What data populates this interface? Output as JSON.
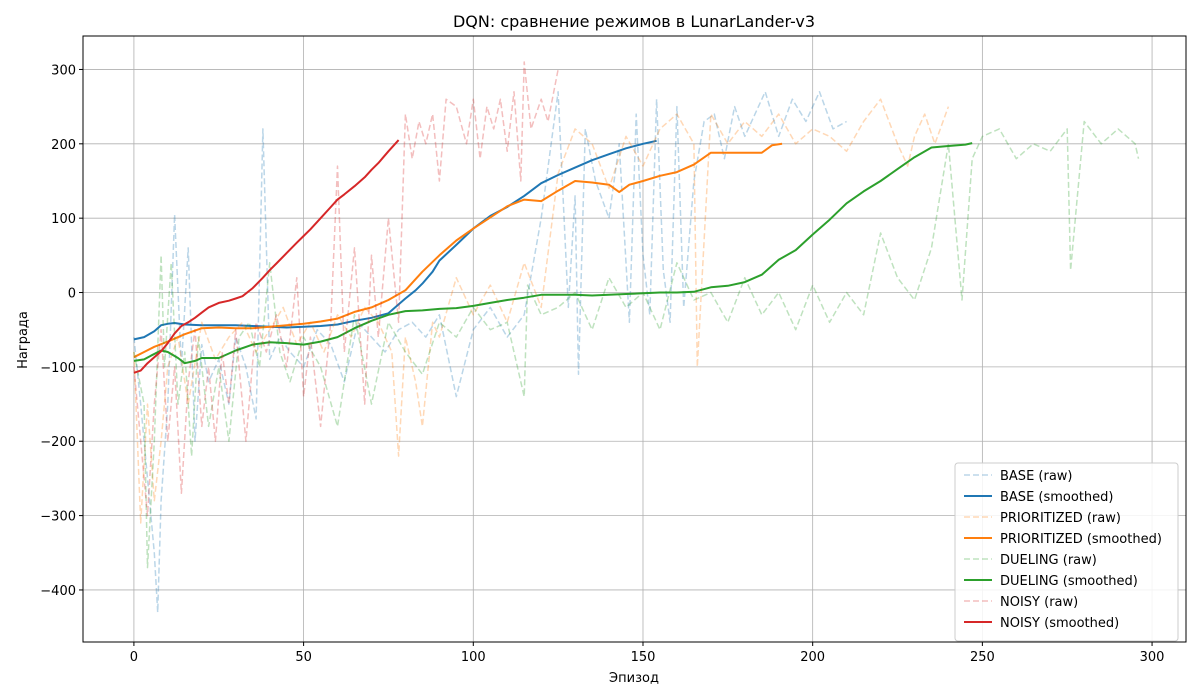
{
  "chart_data": {
    "type": "line",
    "title": "DQN: сравнение режимов в LunarLander-v3",
    "xlabel": "Эпизод",
    "ylabel": "Награда",
    "xlim": [
      -15,
      310
    ],
    "ylim": [
      -470,
      345
    ],
    "xticks": [
      0,
      50,
      100,
      150,
      200,
      250,
      300
    ],
    "yticks": [
      -400,
      -300,
      -200,
      -100,
      0,
      100,
      200,
      300
    ],
    "ytick_labels": [
      "−400",
      "−300",
      "−200",
      "−100",
      "0",
      "100",
      "200",
      "300"
    ],
    "grid": true,
    "legend_position": "lower-right",
    "series": [
      {
        "name": "BASE (raw)",
        "style": "dashed",
        "color": "#1f77b4",
        "opacity": 0.3,
        "x": [
          0,
          2,
          4,
          6,
          7,
          8,
          10,
          12,
          14,
          16,
          18,
          20,
          22,
          25,
          28,
          30,
          33,
          36,
          38,
          40,
          43,
          46,
          50,
          54,
          58,
          62,
          66,
          70,
          74,
          78,
          82,
          86,
          90,
          95,
          100,
          105,
          110,
          115,
          120,
          125,
          128,
          130,
          131,
          133,
          136,
          140,
          143,
          146,
          148,
          150,
          152,
          154,
          156,
          158,
          160,
          162,
          165,
          168,
          171,
          174,
          177,
          180,
          183,
          186,
          190,
          194,
          198,
          202,
          206,
          210
        ],
        "y": [
          -60,
          -150,
          -250,
          -350,
          -430,
          -280,
          -150,
          105,
          -100,
          60,
          -200,
          -70,
          -120,
          -90,
          -150,
          -60,
          -100,
          -170,
          220,
          -90,
          -60,
          -80,
          -100,
          -50,
          -70,
          -120,
          -40,
          -60,
          -80,
          -50,
          -40,
          -60,
          -30,
          -140,
          -50,
          -20,
          -60,
          -30,
          100,
          270,
          -20,
          130,
          -110,
          220,
          150,
          100,
          200,
          -40,
          240,
          50,
          -30,
          260,
          30,
          -40,
          250,
          -20,
          150,
          230,
          240,
          180,
          250,
          210,
          240,
          270,
          210,
          260,
          230,
          270,
          220,
          230
        ]
      },
      {
        "name": "BASE (smoothed)",
        "style": "solid",
        "color": "#1f77b4",
        "opacity": 1,
        "x": [
          0,
          3,
          6,
          8,
          10,
          12,
          15,
          20,
          25,
          30,
          35,
          40,
          45,
          50,
          55,
          60,
          65,
          70,
          75,
          78,
          80,
          83,
          85,
          88,
          90,
          95,
          100,
          105,
          110,
          115,
          120,
          125,
          130,
          135,
          140,
          145,
          150,
          154
        ],
        "y": [
          -63,
          -60,
          -52,
          -44,
          -42,
          -41,
          -43,
          -44,
          -44,
          -44,
          -45,
          -46,
          -47,
          -46,
          -45,
          -43,
          -38,
          -34,
          -28,
          -16,
          -8,
          3,
          12,
          28,
          43,
          64,
          86,
          103,
          115,
          130,
          147,
          158,
          168,
          178,
          186,
          194,
          200,
          204
        ]
      },
      {
        "name": "PRIORITIZED (raw)",
        "style": "dashed",
        "color": "#ff7f0e",
        "opacity": 0.3,
        "x": [
          0,
          2,
          4,
          6,
          8,
          10,
          13,
          16,
          20,
          24,
          28,
          32,
          36,
          40,
          44,
          48,
          52,
          56,
          60,
          64,
          68,
          72,
          76,
          78,
          80,
          83,
          85,
          88,
          90,
          95,
          100,
          105,
          110,
          115,
          120,
          125,
          130,
          135,
          140,
          145,
          150,
          155,
          160,
          165,
          166,
          170,
          175,
          180,
          185,
          190,
          195,
          200,
          205,
          210,
          215,
          220,
          225,
          228,
          230,
          233,
          236,
          240
        ],
        "y": [
          -80,
          -310,
          -150,
          -280,
          -200,
          -100,
          -60,
          -150,
          -40,
          -90,
          -60,
          -40,
          -80,
          -50,
          -20,
          -70,
          -40,
          -80,
          -30,
          -60,
          -20,
          -40,
          -80,
          -220,
          -60,
          -120,
          -180,
          -40,
          -60,
          20,
          -30,
          10,
          -40,
          40,
          -20,
          160,
          220,
          200,
          140,
          210,
          170,
          220,
          240,
          200,
          -100,
          240,
          200,
          230,
          210,
          240,
          200,
          220,
          210,
          190,
          230,
          260,
          200,
          170,
          210,
          240,
          200,
          250
        ]
      },
      {
        "name": "PRIORITIZED (smoothed)",
        "style": "solid",
        "color": "#ff7f0e",
        "opacity": 1,
        "x": [
          0,
          3,
          6,
          10,
          15,
          20,
          25,
          30,
          35,
          40,
          45,
          50,
          55,
          60,
          65,
          70,
          75,
          80,
          85,
          90,
          95,
          100,
          105,
          110,
          115,
          120,
          125,
          130,
          135,
          140,
          143,
          146,
          150,
          155,
          160,
          165,
          170,
          175,
          180,
          185,
          188,
          191
        ],
        "y": [
          -87,
          -80,
          -73,
          -66,
          -56,
          -48,
          -47,
          -48,
          -48,
          -46,
          -44,
          -42,
          -39,
          -35,
          -26,
          -20,
          -10,
          3,
          28,
          50,
          70,
          86,
          101,
          116,
          125,
          123,
          137,
          150,
          148,
          145,
          135,
          145,
          150,
          157,
          162,
          172,
          188,
          188,
          188,
          188,
          198,
          200
        ]
      },
      {
        "name": "DUELING (raw)",
        "style": "dashed",
        "color": "#2ca02c",
        "opacity": 0.3,
        "x": [
          0,
          3,
          4,
          6,
          8,
          9,
          11,
          13,
          15,
          17,
          19,
          22,
          25,
          28,
          31,
          34,
          37,
          40,
          43,
          46,
          50,
          55,
          60,
          65,
          70,
          75,
          80,
          85,
          90,
          95,
          100,
          105,
          110,
          115,
          116,
          120,
          125,
          130,
          135,
          140,
          145,
          150,
          155,
          160,
          165,
          170,
          175,
          180,
          185,
          190,
          195,
          200,
          205,
          210,
          215,
          220,
          225,
          230,
          235,
          240,
          244,
          247,
          250,
          255,
          260,
          265,
          270,
          275,
          276,
          280,
          285,
          290,
          295,
          296
        ],
        "y": [
          -80,
          -150,
          -370,
          -200,
          50,
          -100,
          40,
          -150,
          -80,
          -220,
          -60,
          -180,
          -100,
          -200,
          -60,
          -40,
          -100,
          40,
          -80,
          -120,
          -60,
          -100,
          -180,
          -30,
          -150,
          -40,
          -80,
          -110,
          -40,
          -60,
          -20,
          -50,
          -40,
          -140,
          10,
          -30,
          -20,
          0,
          -50,
          20,
          -20,
          0,
          -50,
          40,
          -10,
          0,
          -40,
          20,
          -30,
          0,
          -50,
          10,
          -40,
          0,
          -30,
          80,
          20,
          -10,
          60,
          200,
          -10,
          180,
          210,
          220,
          180,
          200,
          190,
          220,
          30,
          230,
          200,
          220,
          200,
          180
        ]
      },
      {
        "name": "DUELING (smoothed)",
        "style": "solid",
        "color": "#2ca02c",
        "opacity": 1,
        "x": [
          0,
          3,
          5,
          8,
          10,
          13,
          15,
          18,
          20,
          25,
          30,
          35,
          40,
          45,
          50,
          55,
          60,
          65,
          70,
          75,
          80,
          85,
          90,
          95,
          100,
          105,
          110,
          115,
          120,
          125,
          130,
          135,
          140,
          145,
          150,
          155,
          160,
          165,
          170,
          175,
          180,
          185,
          190,
          195,
          200,
          205,
          210,
          215,
          220,
          225,
          230,
          235,
          240,
          245,
          247
        ],
        "y": [
          -92,
          -90,
          -85,
          -78,
          -80,
          -88,
          -95,
          -92,
          -88,
          -88,
          -78,
          -70,
          -67,
          -68,
          -70,
          -66,
          -60,
          -48,
          -38,
          -30,
          -25,
          -24,
          -22,
          -21,
          -18,
          -14,
          -10,
          -7,
          -3,
          -3,
          -3,
          -4,
          -3,
          -2,
          -1,
          0,
          0,
          1,
          7,
          9,
          14,
          24,
          44,
          57,
          78,
          98,
          120,
          136,
          150,
          166,
          182,
          195,
          197,
          199,
          201
        ]
      },
      {
        "name": "NOISY (raw)",
        "style": "dashed",
        "color": "#d62728",
        "opacity": 0.3,
        "x": [
          0,
          2,
          4,
          6,
          8,
          10,
          12,
          14,
          16,
          18,
          20,
          22,
          24,
          26,
          28,
          30,
          33,
          36,
          39,
          42,
          45,
          48,
          50,
          52,
          55,
          58,
          60,
          62,
          65,
          68,
          70,
          72,
          75,
          78,
          80,
          82,
          84,
          86,
          88,
          90,
          92,
          95,
          98,
          100,
          102,
          104,
          106,
          108,
          110,
          112,
          114,
          115,
          117,
          120,
          122,
          125
        ],
        "y": [
          -100,
          -200,
          -300,
          -150,
          -50,
          -200,
          -100,
          -270,
          -120,
          -50,
          -180,
          -100,
          -200,
          -80,
          -150,
          -50,
          -200,
          -40,
          -80,
          -30,
          -100,
          20,
          -140,
          -60,
          -180,
          -40,
          170,
          -80,
          60,
          -150,
          50,
          -60,
          100,
          -40,
          240,
          180,
          230,
          200,
          240,
          150,
          260,
          250,
          200,
          260,
          180,
          250,
          220,
          260,
          190,
          270,
          150,
          310,
          220,
          260,
          230,
          300
        ]
      },
      {
        "name": "NOISY (smoothed)",
        "style": "solid",
        "color": "#d62728",
        "opacity": 1,
        "x": [
          0,
          2,
          4,
          6,
          8,
          10,
          12,
          14,
          16,
          18,
          20,
          22,
          25,
          28,
          30,
          32,
          35,
          38,
          40,
          42,
          45,
          48,
          50,
          52,
          55,
          58,
          60,
          62,
          65,
          68,
          70,
          72,
          75,
          78
        ],
        "y": [
          -108,
          -105,
          -95,
          -87,
          -79,
          -68,
          -55,
          -45,
          -40,
          -34,
          -27,
          -20,
          -14,
          -11,
          -8,
          -5,
          6,
          20,
          30,
          39,
          53,
          67,
          76,
          85,
          100,
          115,
          125,
          132,
          143,
          155,
          165,
          174,
          190,
          205
        ]
      }
    ]
  }
}
